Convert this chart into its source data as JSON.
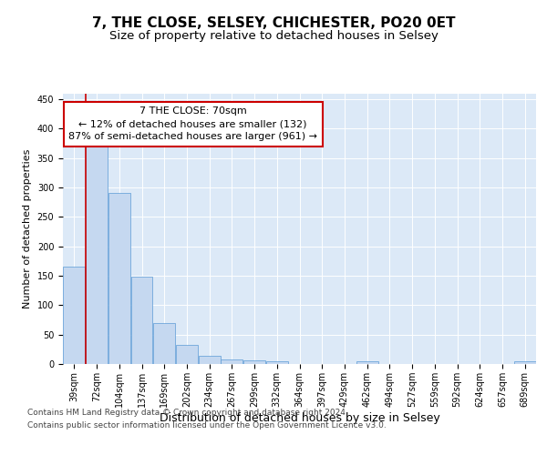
{
  "title": "7, THE CLOSE, SELSEY, CHICHESTER, PO20 0ET",
  "subtitle": "Size of property relative to detached houses in Selsey",
  "xlabel": "Distribution of detached houses by size in Selsey",
  "ylabel": "Number of detached properties",
  "bar_labels": [
    "39sqm",
    "72sqm",
    "104sqm",
    "137sqm",
    "169sqm",
    "202sqm",
    "234sqm",
    "267sqm",
    "299sqm",
    "332sqm",
    "364sqm",
    "397sqm",
    "429sqm",
    "462sqm",
    "494sqm",
    "527sqm",
    "559sqm",
    "592sqm",
    "624sqm",
    "657sqm",
    "689sqm"
  ],
  "bar_values": [
    165,
    375,
    290,
    148,
    70,
    33,
    14,
    7,
    6,
    5,
    0,
    0,
    0,
    5,
    0,
    0,
    0,
    0,
    0,
    0,
    5
  ],
  "bar_color": "#c5d8f0",
  "bar_edge_color": "#5b9bd5",
  "subject_line_color": "#cc0000",
  "subject_line_xindex": 1,
  "annotation_line1": "7 THE CLOSE: 70sqm",
  "annotation_line2": "← 12% of detached houses are smaller (132)",
  "annotation_line3": "87% of semi-detached houses are larger (961) →",
  "annotation_box_color": "#ffffff",
  "annotation_box_edge": "#cc0000",
  "ylim": [
    0,
    460
  ],
  "yticks": [
    0,
    50,
    100,
    150,
    200,
    250,
    300,
    350,
    400,
    450
  ],
  "footer1": "Contains HM Land Registry data © Crown copyright and database right 2024.",
  "footer2": "Contains public sector information licensed under the Open Government Licence v3.0.",
  "plot_background": "#dce9f7",
  "fig_background": "#ffffff",
  "grid_color": "#ffffff",
  "title_fontsize": 11,
  "subtitle_fontsize": 9.5,
  "xlabel_fontsize": 9,
  "ylabel_fontsize": 8,
  "tick_fontsize": 7,
  "annotation_fontsize": 8,
  "footer_fontsize": 6.5
}
